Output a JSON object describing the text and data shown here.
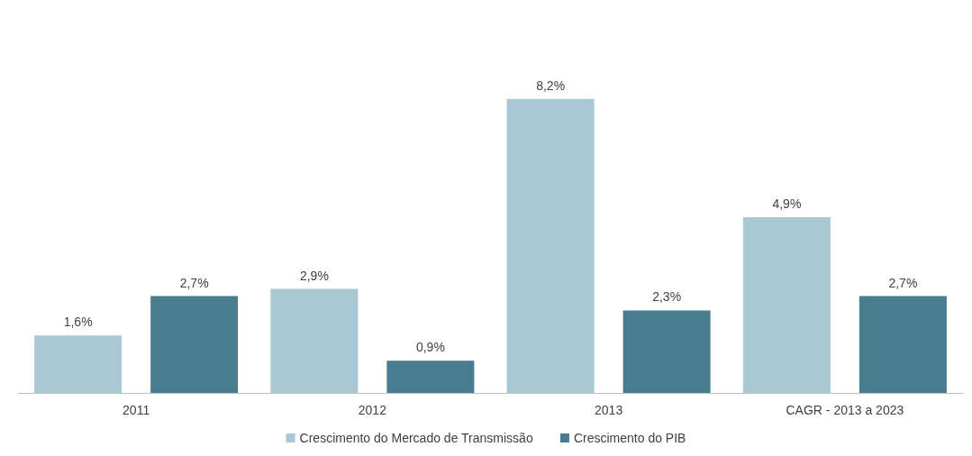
{
  "chart_data": {
    "type": "bar",
    "categories": [
      "2011",
      "2012",
      "2013",
      "CAGR - 2013 a 2023"
    ],
    "series": [
      {
        "name": "Crescimento do Mercado de Transmissão",
        "color": "#a8c8d3",
        "values": [
          1.6,
          2.9,
          8.2,
          4.9
        ],
        "value_labels": [
          "1,6%",
          "2,9%",
          "8,2%",
          "4,9%"
        ]
      },
      {
        "name": "Crescimento do PIB",
        "color": "#4a7c8f",
        "values": [
          2.7,
          0.9,
          2.3,
          2.7
        ],
        "value_labels": [
          "2,7%",
          "0,9%",
          "2,3%",
          "2,7%"
        ]
      }
    ],
    "legend": "bottom"
  }
}
